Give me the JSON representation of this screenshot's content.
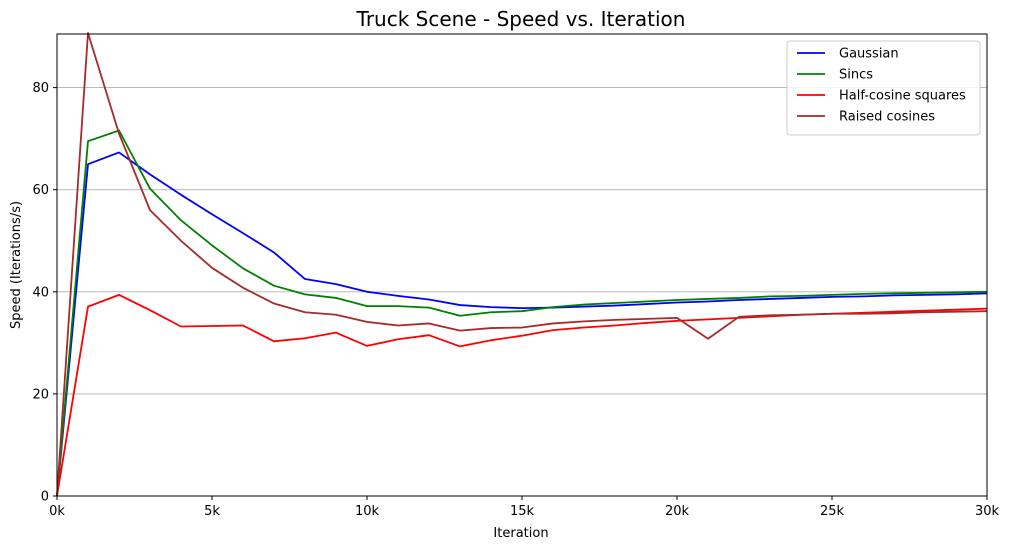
{
  "chart_data": {
    "type": "line",
    "title": "Truck Scene - Speed vs. Iteration",
    "xlabel": "Iteration",
    "ylabel": "Speed (Iterations/s)",
    "xlim": [
      0,
      30000
    ],
    "ylim": [
      0,
      90.5
    ],
    "grid": "horizontal",
    "legend_position": "top-right",
    "xticks": [
      {
        "value": 0,
        "label": "0k"
      },
      {
        "value": 5000,
        "label": "5k"
      },
      {
        "value": 10000,
        "label": "10k"
      },
      {
        "value": 15000,
        "label": "15k"
      },
      {
        "value": 20000,
        "label": "20k"
      },
      {
        "value": 25000,
        "label": "25k"
      },
      {
        "value": 30000,
        "label": "30k"
      }
    ],
    "yticks": [
      {
        "value": 0,
        "label": "0"
      },
      {
        "value": 20,
        "label": "20"
      },
      {
        "value": 40,
        "label": "40"
      },
      {
        "value": 60,
        "label": "60"
      },
      {
        "value": 80,
        "label": "80"
      }
    ],
    "x": [
      0,
      1000,
      2000,
      3000,
      4000,
      5000,
      6000,
      7000,
      8000,
      9000,
      10000,
      11000,
      12000,
      13000,
      14000,
      15000,
      16000,
      17000,
      18000,
      19000,
      20000,
      21000,
      22000,
      23000,
      24000,
      25000,
      26000,
      27000,
      28000,
      29000,
      30000
    ],
    "series": [
      {
        "name": "Gaussian",
        "color": "#0000ff",
        "values": [
          0,
          65,
          67.3,
          63,
          59,
          55.2,
          51.5,
          47.7,
          42.5,
          41.5,
          40,
          39.2,
          38.5,
          37.4,
          37,
          36.8,
          36.9,
          37.1,
          37.3,
          37.6,
          37.9,
          38.1,
          38.4,
          38.6,
          38.8,
          39,
          39.1,
          39.3,
          39.4,
          39.5,
          39.7
        ]
      },
      {
        "name": "Sincs",
        "color": "#008000",
        "values": [
          0,
          69.5,
          71.6,
          60.2,
          54,
          49.1,
          44.6,
          41.2,
          39.5,
          38.8,
          37.2,
          37.2,
          36.9,
          35.3,
          36,
          36.2,
          37,
          37.5,
          37.8,
          38.1,
          38.4,
          38.6,
          38.8,
          39.1,
          39.2,
          39.4,
          39.6,
          39.7,
          39.8,
          39.9,
          40
        ]
      },
      {
        "name": "Half-cosine squares",
        "color": "#ff0000",
        "values": [
          0,
          37.1,
          39.4,
          36.4,
          33.2,
          33.3,
          33.4,
          30.3,
          30.9,
          32,
          29.4,
          30.7,
          31.5,
          29.3,
          30.5,
          31.4,
          32.5,
          33,
          33.4,
          33.9,
          34.3,
          34.6,
          34.9,
          35.2,
          35.5,
          35.7,
          35.9,
          36.1,
          36.3,
          36.5,
          36.7
        ]
      },
      {
        "name": "Raised cosines",
        "color": "#a52a2a",
        "values": [
          0,
          90.7,
          71,
          56,
          50,
          44.7,
          40.8,
          37.7,
          36,
          35.5,
          34.1,
          33.4,
          33.8,
          32.4,
          32.9,
          33,
          33.8,
          34.2,
          34.5,
          34.7,
          34.9,
          30.8,
          35.1,
          35.4,
          35.5,
          35.7,
          35.7,
          35.8,
          36,
          36.1,
          36.2
        ]
      }
    ]
  }
}
